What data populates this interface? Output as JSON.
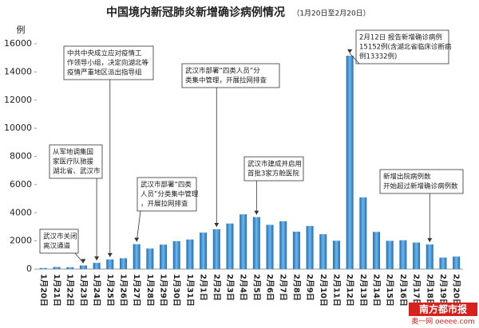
{
  "chart_data": {
    "type": "bar",
    "title": "中国境内新冠肺炎新增确诊病例情况",
    "subtitle": "（1月20日至2月20日）",
    "y_label": "例",
    "categories": [
      "1月20日",
      "1月21日",
      "1月22日",
      "1月23日",
      "1月24日",
      "1月25日",
      "1月26日",
      "1月27日",
      "1月28日",
      "1月29日",
      "1月30日",
      "1月31日",
      "2月1日",
      "2月2日",
      "2月3日",
      "2月4日",
      "2月5日",
      "2月6日",
      "2月7日",
      "2月8日",
      "2月9日",
      "2月10日",
      "2月11日",
      "2月12日",
      "2月13日",
      "2月14日",
      "2月15日",
      "2月16日",
      "2月17日",
      "2月18日",
      "2月19日",
      "2月20日"
    ],
    "values": [
      77,
      149,
      131,
      259,
      444,
      688,
      769,
      1771,
      1459,
      1737,
      1982,
      2102,
      2590,
      2829,
      3235,
      3887,
      3694,
      3143,
      3399,
      2656,
      3062,
      2478,
      2015,
      15152,
      5090,
      2641,
      2009,
      2048,
      1886,
      1749,
      820,
      889
    ],
    "color": "#3a8dd0",
    "ylim": [
      0,
      16000
    ],
    "yticks": [
      0,
      2000,
      4000,
      6000,
      8000,
      10000,
      12000,
      14000,
      16000
    ],
    "annotations": [
      {
        "lines": [
          "武汉市关闭",
          "离汉通道"
        ]
      },
      {
        "lines": [
          "从军地调集国",
          "家医疗队驰援",
          "湖北省、武汉市"
        ]
      },
      {
        "lines": [
          "中共中央成立应对疫情工",
          "作领导小组，决定向湖北等",
          "疫情严重地区派出指导组"
        ]
      },
      {
        "lines": [
          "武汉市部署“四类",
          "人员”分类集中管理",
          "，开展拉网排查"
        ]
      },
      {
        "lines": [
          "武汉市部署“四类人员”分",
          "类集中管理，开展拉网排查"
        ]
      },
      {
        "lines": [
          "武汉市建成并启用",
          "首批3家方舱医院"
        ]
      },
      {
        "lines": [
          "2月12日 报告新增确诊病例",
          "15152例(含湖北省临床诊断病",
          "例13332例)"
        ]
      },
      {
        "lines": [
          "新增出院病例数",
          "开始超过新增确诊病例数"
        ]
      }
    ],
    "watermark": [
      "南方都市报",
      "奥一网 oeeee.com"
    ]
  }
}
